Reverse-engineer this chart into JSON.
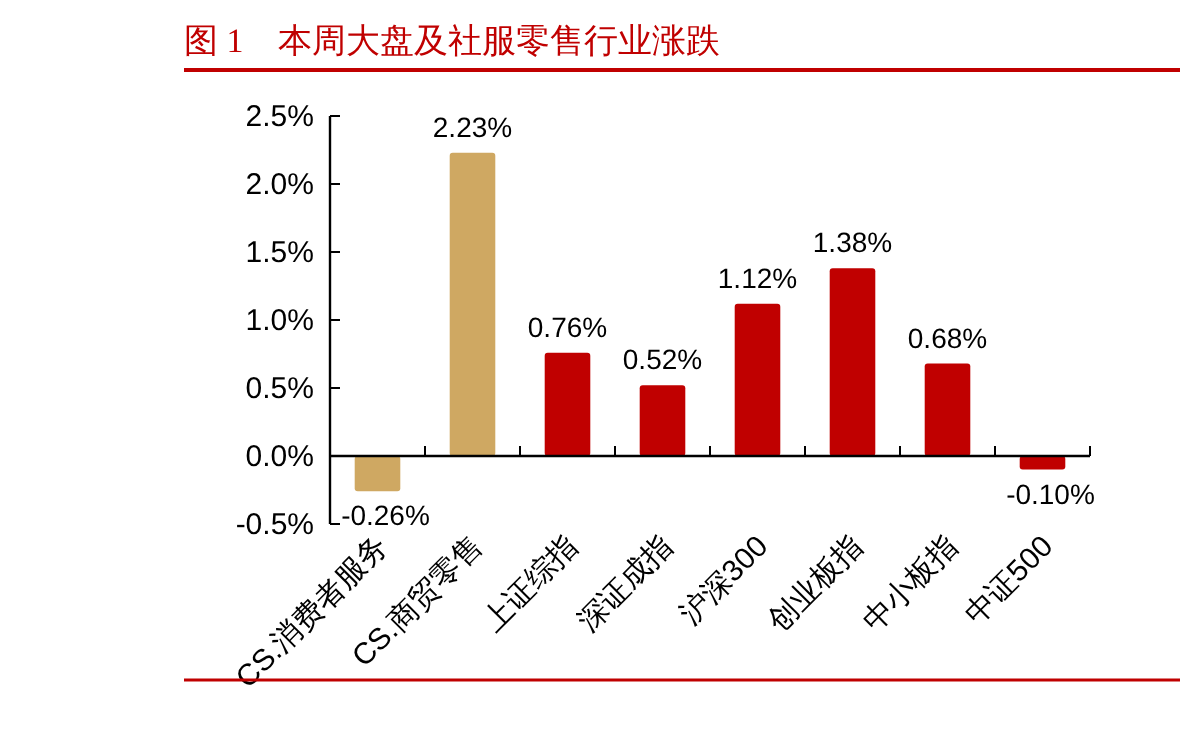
{
  "chart_data": {
    "type": "bar",
    "title": "图 1　本周大盘及社服零售行业涨跌",
    "categories": [
      "CS.消费者服务",
      "CS.商贸零售",
      "上证综指",
      "深证成指",
      "沪深300",
      "创业板指",
      "中小板指",
      "中证500"
    ],
    "values": [
      -0.26,
      2.23,
      0.76,
      0.52,
      1.12,
      1.38,
      0.68,
      -0.1
    ],
    "colors": [
      "#cfa862",
      "#cfa862",
      "#c00000",
      "#c00000",
      "#c00000",
      "#c00000",
      "#c00000",
      "#c00000"
    ],
    "value_labels": [
      "-0.26%",
      "2.23%",
      "0.76%",
      "0.52%",
      "1.12%",
      "1.38%",
      "0.68%",
      "-0.10%"
    ],
    "ylim": [
      -0.5,
      2.5
    ],
    "yticks": [
      {
        "value": -0.5,
        "label": "-0.5%"
      },
      {
        "value": 0,
        "label": "0.0%"
      },
      {
        "value": 0.5,
        "label": "0.5%"
      },
      {
        "value": 1,
        "label": "1.0%"
      },
      {
        "value": 1.5,
        "label": "1.5%"
      },
      {
        "value": 2,
        "label": "2.0%"
      },
      {
        "value": 2.5,
        "label": "2.5%"
      }
    ],
    "grid": false
  }
}
